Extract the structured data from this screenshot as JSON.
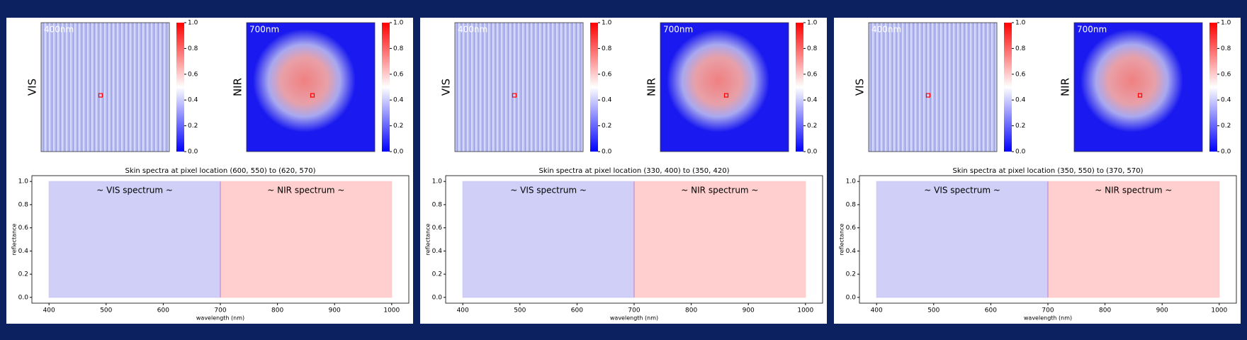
{
  "chart_data": [
    {
      "type": "spectrum",
      "images": [
        {
          "ylabel": "VIS",
          "annotation": "400nm"
        },
        {
          "ylabel": "NIR",
          "annotation": "700nm"
        }
      ],
      "colorbar_lim": [
        0,
        1
      ],
      "colorbar_ticks": [
        {
          "value": 0,
          "label": "0.0"
        },
        {
          "value": 0.2,
          "label": "0.2"
        },
        {
          "value": 0.4,
          "label": "0.4"
        },
        {
          "value": 0.6,
          "label": "0.6"
        },
        {
          "value": 0.8,
          "label": "0.8"
        },
        {
          "value": 1,
          "label": "1.0"
        }
      ],
      "title": "Skin spectra at pixel location (600, 550) to (620, 570)",
      "xlabel": "wavelength (nm)",
      "ylabel": "reflectance",
      "xlim": [
        370,
        1030
      ],
      "ylim": [
        -0.05,
        1.05
      ],
      "xticks": [
        400,
        500,
        600,
        700,
        800,
        900,
        1000
      ],
      "yticks": [
        {
          "value": 0,
          "label": "0.0"
        },
        {
          "value": 0.2,
          "label": "0.2"
        },
        {
          "value": 0.4,
          "label": "0.4"
        },
        {
          "value": 0.6,
          "label": "0.6"
        },
        {
          "value": 0.8,
          "label": "0.8"
        },
        {
          "value": 1,
          "label": "1.0"
        }
      ],
      "spans": [
        {
          "name": "~ VIS spectrum ~",
          "color": "#ccccf8",
          "x": [
            400,
            700
          ],
          "y": [
            0,
            1
          ]
        },
        {
          "name": "~ NIR spectrum ~",
          "color": "#ffcccc",
          "x": [
            700,
            1000
          ],
          "y": [
            0,
            1
          ]
        }
      ]
    },
    {
      "type": "spectrum",
      "images": [
        {
          "ylabel": "VIS",
          "annotation": "400nm"
        },
        {
          "ylabel": "NIR",
          "annotation": "700nm"
        }
      ],
      "colorbar_lim": [
        0,
        1
      ],
      "colorbar_ticks": [
        {
          "value": 0,
          "label": "0.0"
        },
        {
          "value": 0.2,
          "label": "0.2"
        },
        {
          "value": 0.4,
          "label": "0.4"
        },
        {
          "value": 0.6,
          "label": "0.6"
        },
        {
          "value": 0.8,
          "label": "0.8"
        },
        {
          "value": 1,
          "label": "1.0"
        }
      ],
      "title": "Skin spectra at pixel location (330, 400) to (350, 420)",
      "xlabel": "wavelength (nm)",
      "ylabel": "reflectance",
      "xlim": [
        370,
        1030
      ],
      "ylim": [
        -0.05,
        1.05
      ],
      "xticks": [
        400,
        500,
        600,
        700,
        800,
        900,
        1000
      ],
      "yticks": [
        {
          "value": 0,
          "label": "0.0"
        },
        {
          "value": 0.2,
          "label": "0.2"
        },
        {
          "value": 0.4,
          "label": "0.4"
        },
        {
          "value": 0.6,
          "label": "0.6"
        },
        {
          "value": 0.8,
          "label": "0.8"
        },
        {
          "value": 1,
          "label": "1.0"
        }
      ],
      "spans": [
        {
          "name": "~ VIS spectrum ~",
          "color": "#ccccf8",
          "x": [
            400,
            700
          ],
          "y": [
            0,
            1
          ]
        },
        {
          "name": "~ NIR spectrum ~",
          "color": "#ffcccc",
          "x": [
            700,
            1000
          ],
          "y": [
            0,
            1
          ]
        }
      ]
    },
    {
      "type": "spectrum",
      "images": [
        {
          "ylabel": "VIS",
          "annotation": "400nm"
        },
        {
          "ylabel": "NIR",
          "annotation": "700nm"
        }
      ],
      "colorbar_lim": [
        0,
        1
      ],
      "colorbar_ticks": [
        {
          "value": 0,
          "label": "0.0"
        },
        {
          "value": 0.2,
          "label": "0.2"
        },
        {
          "value": 0.4,
          "label": "0.4"
        },
        {
          "value": 0.6,
          "label": "0.6"
        },
        {
          "value": 0.8,
          "label": "0.8"
        },
        {
          "value": 1,
          "label": "1.0"
        }
      ],
      "title": "Skin spectra at pixel location (350, 550) to (370, 570)",
      "xlabel": "wavelength (nm)",
      "ylabel": "reflectance",
      "xlim": [
        370,
        1030
      ],
      "ylim": [
        -0.05,
        1.05
      ],
      "xticks": [
        400,
        500,
        600,
        700,
        800,
        900,
        1000
      ],
      "yticks": [
        {
          "value": 0,
          "label": "0.0"
        },
        {
          "value": 0.2,
          "label": "0.2"
        },
        {
          "value": 0.4,
          "label": "0.4"
        },
        {
          "value": 0.6,
          "label": "0.6"
        },
        {
          "value": 0.8,
          "label": "0.8"
        },
        {
          "value": 1,
          "label": "1.0"
        }
      ],
      "spans": [
        {
          "name": "~ VIS spectrum ~",
          "color": "#ccccf8",
          "x": [
            400,
            700
          ],
          "y": [
            0,
            1
          ]
        },
        {
          "name": "~ NIR spectrum ~",
          "color": "#ffcccc",
          "x": [
            700,
            1000
          ],
          "y": [
            0,
            1
          ]
        }
      ]
    }
  ]
}
